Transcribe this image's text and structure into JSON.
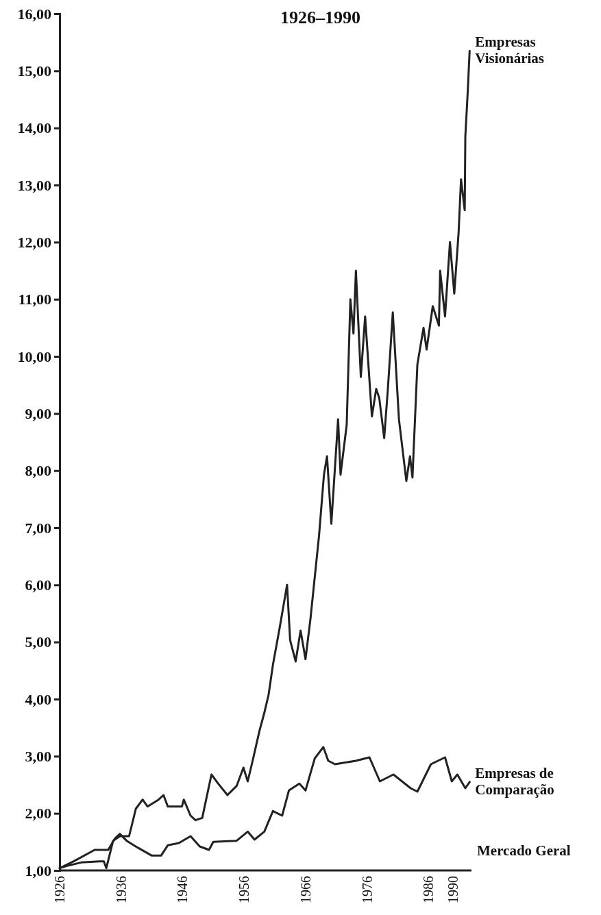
{
  "chart_data": {
    "type": "line",
    "title": "1926–1990",
    "xlim": [
      1926,
      1993
    ],
    "ylim": [
      1,
      16
    ],
    "xticks": [
      1926,
      1936,
      1946,
      1956,
      1966,
      1976,
      1986,
      1990
    ],
    "yticks": [
      {
        "value": 1,
        "label": "1,00"
      },
      {
        "value": 2,
        "label": "2,00"
      },
      {
        "value": 3,
        "label": "3,00"
      },
      {
        "value": 4,
        "label": "4,00"
      },
      {
        "value": 5,
        "label": "5,00"
      },
      {
        "value": 6,
        "label": "6,00"
      },
      {
        "value": 7,
        "label": "7,00"
      },
      {
        "value": 8,
        "label": "8,00"
      },
      {
        "value": 9,
        "label": "9,00"
      },
      {
        "value": 10,
        "label": "10,00"
      },
      {
        "value": 11,
        "label": "11,00"
      },
      {
        "value": 12,
        "label": "12,00"
      },
      {
        "value": 13,
        "label": "13,00"
      },
      {
        "value": 14,
        "label": "14,00"
      },
      {
        "value": 15,
        "label": "15,00"
      },
      {
        "value": 16,
        "label": "16,00"
      }
    ],
    "grid": false,
    "legend": false,
    "marker": "none",
    "line_style": "solid",
    "annotations": [
      "Mercado Geral"
    ],
    "series": [
      {
        "name": "Empresas Visionárias",
        "color": "#222222",
        "x": [
          1926,
          1927.2,
          1929.5,
          1932.5,
          1933.2,
          1933.6,
          1934.7,
          1935.8,
          1937.3,
          1938.4,
          1939.5,
          1940.3,
          1942.1,
          1942.9,
          1943.6,
          1945.9,
          1946.2,
          1947.3,
          1948.1,
          1949.2,
          1950.7,
          1951.8,
          1953.3,
          1954.8,
          1955.9,
          1956.6,
          1957.4,
          1958.5,
          1959.3,
          1960,
          1960.7,
          1961.8,
          1963,
          1963.5,
          1964.4,
          1965.2,
          1966,
          1966.8,
          1968.2,
          1969,
          1969.5,
          1970.2,
          1971.3,
          1971.7,
          1972.7,
          1973.3,
          1973.8,
          1974.2,
          1975,
          1975.7,
          1976.8,
          1977.5,
          1978,
          1978.8,
          1979.4,
          1980.2,
          1981.2,
          1982.4,
          1983,
          1983.4,
          1984.2,
          1985.2,
          1985.7,
          1986.7,
          1987.7,
          1987.9,
          1988.7,
          1989.5,
          1990.2,
          1990.9,
          1991.3,
          1991.9,
          1992,
          1992.4,
          1992.7
        ],
        "values": [
          1.04,
          1.08,
          1.14,
          1.16,
          1.16,
          1.04,
          1.52,
          1.6,
          1.6,
          2.08,
          2.24,
          2.12,
          2.24,
          2.32,
          2.12,
          2.12,
          2.24,
          1.96,
          1.88,
          1.92,
          2.68,
          2.52,
          2.32,
          2.48,
          2.8,
          2.56,
          2.92,
          3.44,
          3.76,
          4.08,
          4.6,
          5.25,
          6,
          5.03,
          4.66,
          5.2,
          4.7,
          5.4,
          6.86,
          7.93,
          8.25,
          7.07,
          8.9,
          7.93,
          8.8,
          11,
          10.4,
          11.5,
          9.64,
          10.7,
          8.95,
          9.43,
          9.27,
          8.57,
          9.43,
          10.77,
          8.9,
          7.82,
          8.25,
          7.88,
          9.86,
          10.5,
          10.12,
          10.88,
          10.54,
          11.5,
          10.7,
          12,
          11.1,
          12.16,
          13.1,
          12.56,
          13.85,
          14.65,
          15.35
        ]
      },
      {
        "name": "Empresas de Comparação",
        "color": "#222222",
        "x": [
          1926,
          1928.3,
          1931.7,
          1933.9,
          1935,
          1935.8,
          1936.9,
          1938.7,
          1941,
          1942.5,
          1943.6,
          1945.4,
          1947.3,
          1948.8,
          1950.3,
          1951,
          1954.8,
          1956.6,
          1957.7,
          1959.3,
          1960.7,
          1962.2,
          1963.3,
          1965,
          1966,
          1967.5,
          1968.9,
          1969.7,
          1970.8,
          1974.2,
          1976.4,
          1978.1,
          1980.3,
          1983.1,
          1984.2,
          1986.4,
          1988.7,
          1989.8,
          1990.7,
          1992,
          1992.7
        ],
        "values": [
          1.04,
          1.16,
          1.36,
          1.36,
          1.56,
          1.64,
          1.52,
          1.4,
          1.26,
          1.26,
          1.44,
          1.48,
          1.6,
          1.42,
          1.36,
          1.5,
          1.52,
          1.68,
          1.54,
          1.68,
          2.04,
          1.96,
          2.4,
          2.52,
          2.4,
          2.96,
          3.16,
          2.92,
          2.86,
          2.92,
          2.98,
          2.56,
          2.68,
          2.44,
          2.38,
          2.86,
          2.98,
          2.56,
          2.68,
          2.44,
          2.55
        ]
      }
    ]
  }
}
